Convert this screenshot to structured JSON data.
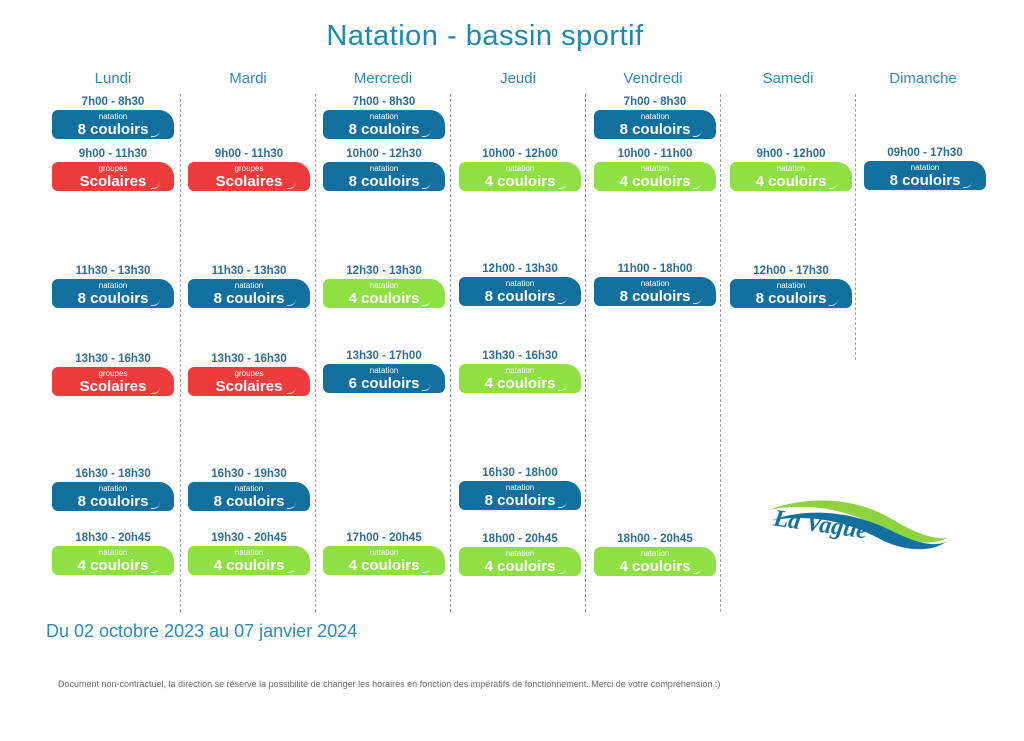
{
  "title": "Natation - bassin sportif",
  "days": [
    "Lundi",
    "Mardi",
    "Mercredi",
    "Jeudi",
    "Vendredi",
    "Samedi",
    "Dimanche"
  ],
  "colors": {
    "blue": "#13709e",
    "green": "#8ee045",
    "red": "#ee3b3b",
    "heading": "#2a8bbd"
  },
  "schedule": [
    [
      {
        "time": "7h00 - 8h30",
        "label": "natation",
        "lanes": "8 couloirs",
        "color": "blue"
      },
      {
        "time": "9h00 - 11h30",
        "label": "groupes",
        "lanes": "Scolaires",
        "color": "red"
      },
      {
        "time": "11h30 - 13h30",
        "label": "natation",
        "lanes": "8 couloirs",
        "color": "blue"
      },
      {
        "time": "13h30 - 16h30",
        "label": "groupes",
        "lanes": "Scolaires",
        "color": "red"
      },
      {
        "time": "16h30 - 18h30",
        "label": "natation",
        "lanes": "8 couloirs",
        "color": "blue"
      },
      {
        "time": "18h30 - 20h45",
        "label": "natation",
        "lanes": "4 couloirs",
        "color": "green"
      }
    ],
    [
      {
        "time": "9h00 - 11h30",
        "label": "groupes",
        "lanes": "Scolaires",
        "color": "red"
      },
      {
        "time": "11h30 - 13h30",
        "label": "natation",
        "lanes": "8 couloirs",
        "color": "blue"
      },
      {
        "time": "13h30 - 16h30",
        "label": "groupes",
        "lanes": "Scolaires",
        "color": "red"
      },
      {
        "time": "16h30 - 19h30",
        "label": "natation",
        "lanes": "8 couloirs",
        "color": "blue"
      },
      {
        "time": "19h30 - 20h45",
        "label": "natation",
        "lanes": "4 couloirs",
        "color": "green"
      }
    ],
    [
      {
        "time": "7h00 - 8h30",
        "label": "natation",
        "lanes": "8 couloirs",
        "color": "blue"
      },
      {
        "time": "10h00 - 12h30",
        "label": "natation",
        "lanes": "8 couloirs",
        "color": "blue"
      },
      {
        "time": "12h30 - 13h30",
        "label": "natation",
        "lanes": "4 couloirs",
        "color": "green"
      },
      {
        "time": "13h30 - 17h00",
        "label": "natation",
        "lanes": "6 couloirs",
        "color": "blue"
      },
      {
        "time": "17h00 - 20h45",
        "label": "natation",
        "lanes": "4 couloirs",
        "color": "green"
      }
    ],
    [
      {
        "time": "10h00 - 12h00",
        "label": "natation",
        "lanes": "4 couloirs",
        "color": "green"
      },
      {
        "time": "12h00 - 13h30",
        "label": "natation",
        "lanes": "8 couloirs",
        "color": "blue"
      },
      {
        "time": "13h30 - 16h30",
        "label": "natation",
        "lanes": "4 couloirs",
        "color": "green"
      },
      {
        "time": "16h30 - 18h00",
        "label": "natation",
        "lanes": "8 couloirs",
        "color": "blue"
      },
      {
        "time": "18h00 - 20h45",
        "label": "natation",
        "lanes": "4 couloirs",
        "color": "green"
      }
    ],
    [
      {
        "time": "7h00 - 8h30",
        "label": "natation",
        "lanes": "8 couloirs",
        "color": "blue"
      },
      {
        "time": "10h00 - 11h00",
        "label": "natation",
        "lanes": "4 couloirs",
        "color": "green"
      },
      {
        "time": "11h00 - 18h00",
        "label": "natation",
        "lanes": "8 couloirs",
        "color": "blue"
      },
      {
        "time": "18h00 - 20h45",
        "label": "natation",
        "lanes": "4 couloirs",
        "color": "green"
      }
    ],
    [
      {
        "time": "9h00 - 12h00",
        "label": "natation",
        "lanes": "4 couloirs",
        "color": "green"
      },
      {
        "time": "12h00 - 17h30",
        "label": "natation",
        "lanes": "8 couloirs",
        "color": "blue"
      }
    ],
    [
      {
        "time": "09h00 - 17h30",
        "label": "natation",
        "lanes": "8 couloirs",
        "color": "blue"
      }
    ]
  ],
  "period": "Du 02 octobre 2023 au 07 janvier 2024",
  "disclaimer": "Document non-contractuel, la direction se réserve la possibilité de changer les horaires en fonction des impératifs de fonctionnement. Merci de votre compréhension :)",
  "logo_text": "La Vague"
}
